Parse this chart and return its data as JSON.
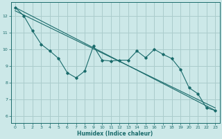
{
  "xlabel": "Humidex (Indice chaleur)",
  "bg_color": "#cce8e8",
  "grid_color": "#aacccc",
  "line_color": "#1a6b6b",
  "xlim": [
    -0.5,
    23.5
  ],
  "ylim": [
    5.6,
    12.8
  ],
  "yticks": [
    6,
    7,
    8,
    9,
    10,
    11,
    12
  ],
  "xticks": [
    0,
    1,
    2,
    3,
    4,
    5,
    6,
    7,
    8,
    9,
    10,
    11,
    12,
    13,
    14,
    15,
    16,
    17,
    18,
    19,
    20,
    21,
    22,
    23
  ],
  "series1_x": [
    0,
    1,
    2,
    3,
    4,
    5,
    6,
    7,
    8,
    9,
    10,
    11,
    12,
    13,
    14,
    15,
    16,
    17,
    18,
    19,
    20,
    21,
    22,
    23
  ],
  "series1_y": [
    12.5,
    12.0,
    11.1,
    10.3,
    9.9,
    9.45,
    8.6,
    8.3,
    8.7,
    10.2,
    9.35,
    9.3,
    9.35,
    9.35,
    9.9,
    9.5,
    10.0,
    9.7,
    9.45,
    8.8,
    7.7,
    7.35,
    6.5,
    6.35
  ],
  "trend1_x": [
    0,
    23
  ],
  "trend1_y": [
    12.5,
    6.35
  ],
  "trend2_x": [
    0,
    23
  ],
  "trend2_y": [
    12.3,
    6.5
  ]
}
